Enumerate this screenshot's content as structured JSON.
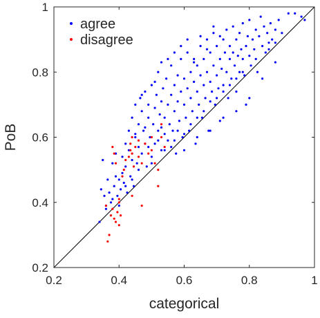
{
  "chart_data": {
    "type": "scatter",
    "xlabel": "categorical",
    "ylabel": "PoB",
    "xlim": [
      0.2,
      1.0
    ],
    "ylim": [
      0.2,
      1.0
    ],
    "xticks": [
      "0.2",
      "0.4",
      "0.6",
      "0.8",
      "1"
    ],
    "yticks": [
      "0.2",
      "0.4",
      "0.6",
      "0.8",
      "1"
    ],
    "grid": false,
    "reference_line": {
      "from": [
        0.2,
        0.2
      ],
      "to": [
        1.0,
        1.0
      ],
      "color": "#000000"
    },
    "legend": {
      "placement": "top-left",
      "entries": [
        "agree",
        "disagree"
      ]
    },
    "series": [
      {
        "name": "agree",
        "color": "#0000ff",
        "points": [
          [
            0.34,
            0.34
          ],
          [
            0.345,
            0.44
          ],
          [
            0.35,
            0.53
          ],
          [
            0.355,
            0.42
          ],
          [
            0.36,
            0.38
          ],
          [
            0.365,
            0.47
          ],
          [
            0.37,
            0.43
          ],
          [
            0.375,
            0.4
          ],
          [
            0.38,
            0.52
          ],
          [
            0.385,
            0.45
          ],
          [
            0.39,
            0.48
          ],
          [
            0.39,
            0.55
          ],
          [
            0.395,
            0.42
          ],
          [
            0.4,
            0.39
          ],
          [
            0.4,
            0.47
          ],
          [
            0.405,
            0.44
          ],
          [
            0.41,
            0.49
          ],
          [
            0.41,
            0.54
          ],
          [
            0.415,
            0.46
          ],
          [
            0.42,
            0.58
          ],
          [
            0.42,
            0.51
          ],
          [
            0.425,
            0.43
          ],
          [
            0.43,
            0.56
          ],
          [
            0.43,
            0.62
          ],
          [
            0.435,
            0.48
          ],
          [
            0.44,
            0.53
          ],
          [
            0.44,
            0.66
          ],
          [
            0.445,
            0.45
          ],
          [
            0.45,
            0.6
          ],
          [
            0.45,
            0.7
          ],
          [
            0.455,
            0.52
          ],
          [
            0.46,
            0.57
          ],
          [
            0.46,
            0.64
          ],
          [
            0.465,
            0.72
          ],
          [
            0.47,
            0.55
          ],
          [
            0.47,
            0.68
          ],
          [
            0.475,
            0.62
          ],
          [
            0.48,
            0.58
          ],
          [
            0.48,
            0.74
          ],
          [
            0.485,
            0.51
          ],
          [
            0.49,
            0.66
          ],
          [
            0.49,
            0.7
          ],
          [
            0.495,
            0.6
          ],
          [
            0.5,
            0.54
          ],
          [
            0.5,
            0.76
          ],
          [
            0.505,
            0.64
          ],
          [
            0.51,
            0.69
          ],
          [
            0.51,
            0.58
          ],
          [
            0.515,
            0.73
          ],
          [
            0.52,
            0.62
          ],
          [
            0.52,
            0.8
          ],
          [
            0.525,
            0.67
          ],
          [
            0.53,
            0.56
          ],
          [
            0.53,
            0.71
          ],
          [
            0.535,
            0.75
          ],
          [
            0.54,
            0.61
          ],
          [
            0.54,
            0.66
          ],
          [
            0.545,
            0.78
          ],
          [
            0.55,
            0.59
          ],
          [
            0.55,
            0.7
          ],
          [
            0.555,
            0.64
          ],
          [
            0.56,
            0.73
          ],
          [
            0.56,
            0.82
          ],
          [
            0.565,
            0.62
          ],
          [
            0.57,
            0.68
          ],
          [
            0.57,
            0.76
          ],
          [
            0.575,
            0.55
          ],
          [
            0.58,
            0.71
          ],
          [
            0.58,
            0.79
          ],
          [
            0.585,
            0.65
          ],
          [
            0.59,
            0.74
          ],
          [
            0.59,
            0.84
          ],
          [
            0.595,
            0.6
          ],
          [
            0.6,
            0.7
          ],
          [
            0.6,
            0.78
          ],
          [
            0.605,
            0.66
          ],
          [
            0.61,
            0.75
          ],
          [
            0.61,
            0.86
          ],
          [
            0.615,
            0.62
          ],
          [
            0.62,
            0.72
          ],
          [
            0.62,
            0.8
          ],
          [
            0.625,
            0.68
          ],
          [
            0.63,
            0.77
          ],
          [
            0.63,
            0.84
          ],
          [
            0.635,
            0.58
          ],
          [
            0.64,
            0.74
          ],
          [
            0.64,
            0.82
          ],
          [
            0.645,
            0.7
          ],
          [
            0.65,
            0.79
          ],
          [
            0.65,
            0.88
          ],
          [
            0.655,
            0.66
          ],
          [
            0.66,
            0.76
          ],
          [
            0.66,
            0.84
          ],
          [
            0.665,
            0.72
          ],
          [
            0.67,
            0.8
          ],
          [
            0.67,
            0.9
          ],
          [
            0.675,
            0.62
          ],
          [
            0.68,
            0.77
          ],
          [
            0.68,
            0.86
          ],
          [
            0.685,
            0.74
          ],
          [
            0.69,
            0.82
          ],
          [
            0.69,
            0.92
          ],
          [
            0.695,
            0.7
          ],
          [
            0.7,
            0.79
          ],
          [
            0.7,
            0.88
          ],
          [
            0.705,
            0.75
          ],
          [
            0.71,
            0.84
          ],
          [
            0.71,
            0.65
          ],
          [
            0.715,
            0.81
          ],
          [
            0.72,
            0.76
          ],
          [
            0.72,
            0.9
          ],
          [
            0.725,
            0.86
          ],
          [
            0.73,
            0.8
          ],
          [
            0.73,
            0.93
          ],
          [
            0.735,
            0.72
          ],
          [
            0.74,
            0.84
          ],
          [
            0.74,
            0.88
          ],
          [
            0.745,
            0.78
          ],
          [
            0.75,
            0.86
          ],
          [
            0.75,
            0.94
          ],
          [
            0.755,
            0.82
          ],
          [
            0.76,
            0.9
          ],
          [
            0.76,
            0.74
          ],
          [
            0.765,
            0.85
          ],
          [
            0.77,
            0.8
          ],
          [
            0.77,
            0.92
          ],
          [
            0.775,
            0.87
          ],
          [
            0.78,
            0.84
          ],
          [
            0.78,
            0.95
          ],
          [
            0.785,
            0.79
          ],
          [
            0.79,
            0.88
          ],
          [
            0.79,
            0.7
          ],
          [
            0.795,
            0.91
          ],
          [
            0.8,
            0.85
          ],
          [
            0.8,
            0.96
          ],
          [
            0.805,
            0.82
          ],
          [
            0.81,
            0.9
          ],
          [
            0.815,
            0.87
          ],
          [
            0.82,
            0.93
          ],
          [
            0.825,
            0.8
          ],
          [
            0.83,
            0.91
          ],
          [
            0.835,
            0.97
          ],
          [
            0.84,
            0.88
          ],
          [
            0.845,
            0.94
          ],
          [
            0.85,
            0.86
          ],
          [
            0.855,
            0.92
          ],
          [
            0.86,
            0.89
          ],
          [
            0.865,
            0.95
          ],
          [
            0.87,
            0.9
          ],
          [
            0.88,
            0.93
          ],
          [
            0.89,
            0.96
          ],
          [
            0.9,
            0.92
          ],
          [
            0.92,
            0.98
          ],
          [
            0.94,
            0.98
          ],
          [
            0.96,
            0.97
          ],
          [
            0.97,
            0.96
          ],
          [
            0.48,
            0.63
          ],
          [
            0.52,
            0.59
          ],
          [
            0.58,
            0.62
          ],
          [
            0.62,
            0.64
          ],
          [
            0.66,
            0.68
          ],
          [
            0.7,
            0.72
          ],
          [
            0.74,
            0.76
          ],
          [
            0.68,
            0.71
          ],
          [
            0.64,
            0.66
          ],
          [
            0.56,
            0.57
          ],
          [
            0.54,
            0.56
          ],
          [
            0.6,
            0.61
          ],
          [
            0.46,
            0.5
          ],
          [
            0.44,
            0.47
          ],
          [
            0.42,
            0.45
          ],
          [
            0.5,
            0.52
          ],
          [
            0.38,
            0.41
          ],
          [
            0.36,
            0.39
          ],
          [
            0.72,
            0.74
          ],
          [
            0.76,
            0.78
          ],
          [
            0.78,
            0.8
          ],
          [
            0.82,
            0.84
          ],
          [
            0.86,
            0.87
          ],
          [
            0.88,
            0.89
          ],
          [
            0.53,
            0.83
          ],
          [
            0.57,
            0.86
          ],
          [
            0.61,
            0.9
          ],
          [
            0.65,
            0.91
          ],
          [
            0.69,
            0.94
          ],
          [
            0.59,
            0.88
          ],
          [
            0.55,
            0.84
          ],
          [
            0.51,
            0.77
          ],
          [
            0.47,
            0.73
          ],
          [
            0.63,
            0.83
          ],
          [
            0.67,
            0.87
          ],
          [
            0.71,
            0.91
          ],
          [
            0.6,
            0.56
          ],
          [
            0.64,
            0.6
          ],
          [
            0.68,
            0.62
          ],
          [
            0.72,
            0.66
          ],
          [
            0.76,
            0.68
          ],
          [
            0.8,
            0.72
          ],
          [
            0.84,
            0.78
          ],
          [
            0.88,
            0.83
          ],
          [
            0.45,
            0.61
          ],
          [
            0.49,
            0.57
          ],
          [
            0.53,
            0.63
          ],
          [
            0.57,
            0.59
          ]
        ]
      },
      {
        "name": "disagree",
        "color": "#ff0000",
        "points": [
          [
            0.36,
            0.39
          ],
          [
            0.365,
            0.28
          ],
          [
            0.37,
            0.3
          ],
          [
            0.375,
            0.36
          ],
          [
            0.38,
            0.38
          ],
          [
            0.385,
            0.35
          ],
          [
            0.39,
            0.34
          ],
          [
            0.395,
            0.37
          ],
          [
            0.4,
            0.4
          ],
          [
            0.405,
            0.36
          ],
          [
            0.4,
            0.33
          ],
          [
            0.38,
            0.57
          ],
          [
            0.385,
            0.55
          ],
          [
            0.39,
            0.52
          ],
          [
            0.41,
            0.48
          ],
          [
            0.415,
            0.5
          ],
          [
            0.42,
            0.53
          ],
          [
            0.43,
            0.54
          ],
          [
            0.435,
            0.56
          ],
          [
            0.44,
            0.55
          ],
          [
            0.445,
            0.51
          ],
          [
            0.45,
            0.57
          ],
          [
            0.44,
            0.6
          ],
          [
            0.435,
            0.58
          ],
          [
            0.46,
            0.54
          ],
          [
            0.47,
            0.52
          ],
          [
            0.48,
            0.58
          ],
          [
            0.49,
            0.55
          ],
          [
            0.5,
            0.56
          ],
          [
            0.51,
            0.52
          ],
          [
            0.52,
            0.5
          ],
          [
            0.53,
            0.64
          ],
          [
            0.53,
            0.6
          ],
          [
            0.54,
            0.57
          ],
          [
            0.52,
            0.45
          ],
          [
            0.47,
            0.39
          ],
          [
            0.44,
            0.42
          ],
          [
            0.4,
            0.41
          ],
          [
            0.5,
            0.6
          ],
          [
            0.46,
            0.59
          ]
        ]
      }
    ]
  }
}
